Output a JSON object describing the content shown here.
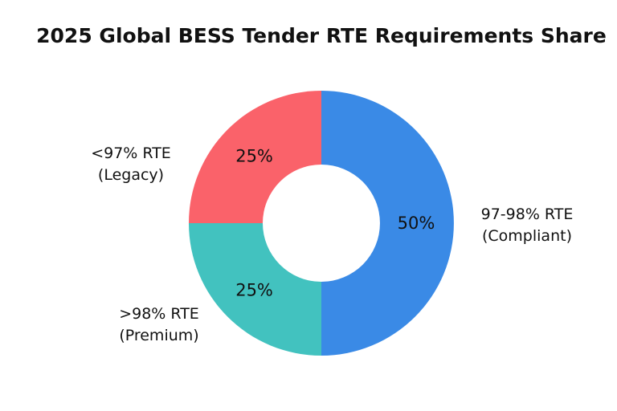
{
  "chart_data": {
    "type": "pie",
    "donut": true,
    "title": "2025 Global BESS Tender RTE Requirements Share",
    "slices": [
      {
        "label": "97-98% RTE (Compliant)",
        "label_lines": [
          "97-98% RTE",
          "(Compliant)"
        ],
        "value": 50,
        "value_label": "50%",
        "color": "#3a8ae6"
      },
      {
        "label": ">98% RTE (Premium)",
        "label_lines": [
          ">98% RTE",
          "(Premium)"
        ],
        "value": 25,
        "value_label": "25%",
        "color": "#42c2bf"
      },
      {
        "label": "<97% RTE (Legacy)",
        "label_lines": [
          "<97% RTE",
          "(Legacy)"
        ],
        "value": 25,
        "value_label": "25%",
        "color": "#fa626a"
      }
    ]
  }
}
